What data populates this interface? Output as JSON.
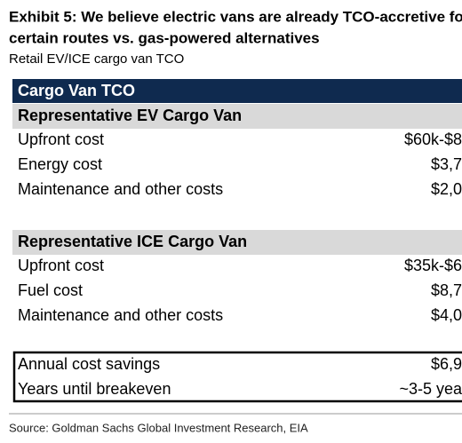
{
  "header": {
    "title_lines": [
      "Exhibit 5: We believe electric vans are already TCO-accretive fo",
      "certain routes vs. gas-powered alternatives"
    ],
    "subtitle": "Retail EV/ICE cargo van TCO"
  },
  "table": {
    "title": "Cargo Van TCO",
    "sections": [
      {
        "title": "Representative EV Cargo Van",
        "rows": [
          [
            "Upfront cost",
            "$60k-$8"
          ],
          [
            "Energy cost",
            "$3,7"
          ],
          [
            "Maintenance and other costs",
            "$2,0"
          ]
        ]
      },
      {
        "title": "Representative ICE Cargo Van",
        "rows": [
          [
            "Upfront cost",
            "$35k-$6"
          ],
          [
            "Fuel cost",
            "$8,7"
          ],
          [
            "Maintenance and other costs",
            "$4,0"
          ]
        ]
      }
    ],
    "summary": [
      [
        "Annual cost savings",
        "$6,9"
      ],
      [
        "Years until breakeven",
        "~3-5 yea"
      ]
    ]
  },
  "footer": {
    "source": "Source: Goldman Sachs Global Investment Research, EIA"
  }
}
